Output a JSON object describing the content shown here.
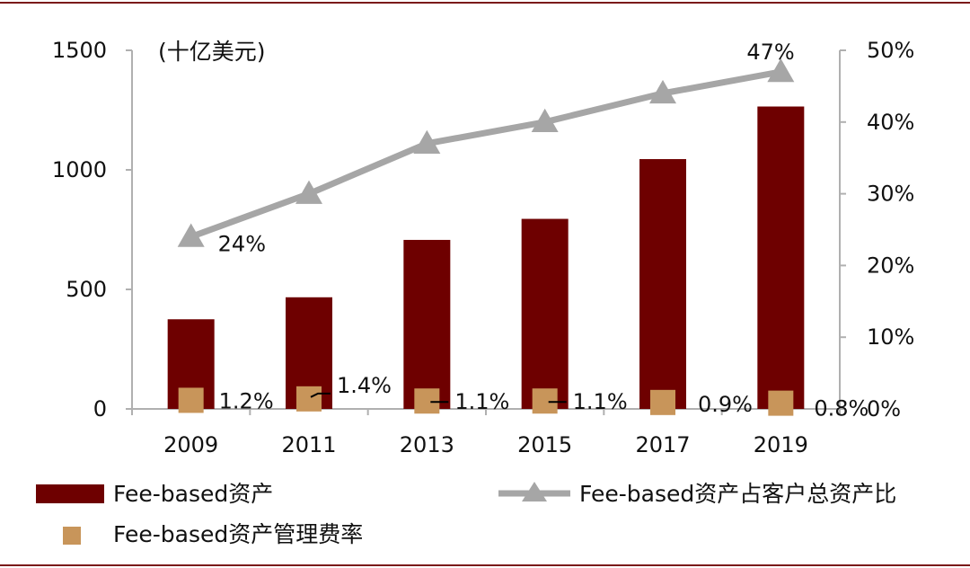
{
  "chart_data": {
    "type": "bar",
    "unit_label": "(十亿美元)",
    "categories": [
      "2009",
      "2011",
      "2013",
      "2015",
      "2017",
      "2019"
    ],
    "y_left": {
      "ylim": [
        0,
        1500
      ],
      "ticks": [
        "0",
        "500",
        "1000",
        "1500"
      ]
    },
    "y_right": {
      "ylim": [
        0,
        50
      ],
      "ticks": [
        "0%",
        "10%",
        "20%",
        "30%",
        "40%",
        "50%"
      ]
    },
    "series": [
      {
        "name": "Fee-based资产",
        "kind": "bar",
        "axis": "left",
        "color": "#6e0000",
        "values": [
          375,
          467,
          707,
          795,
          1045,
          1265
        ]
      },
      {
        "name": "Fee-based资产占客户总资产比",
        "kind": "line",
        "axis": "right",
        "color": "#a6a6a6",
        "values": [
          24,
          30,
          37,
          40,
          44,
          47
        ]
      },
      {
        "name": "Fee-based资产管理费率",
        "kind": "marker",
        "axis": "right",
        "color": "#c8955a",
        "values": [
          1.2,
          1.4,
          1.1,
          1.1,
          0.9,
          0.8
        ]
      }
    ],
    "data_labels": {
      "line": [
        "24%",
        "",
        "",
        "",
        "",
        "47%"
      ],
      "marker": [
        "1.2%",
        "1.4%",
        "1.1%",
        "1.1%",
        "0.9%",
        "0.8%"
      ]
    },
    "legend": [
      {
        "label": "Fee-based资产",
        "kind": "bar"
      },
      {
        "label": "Fee-based资产占客户总资产比",
        "kind": "line"
      },
      {
        "label": "Fee-based资产管理费率",
        "kind": "marker"
      }
    ],
    "frame_color": "#7a1a1a"
  }
}
